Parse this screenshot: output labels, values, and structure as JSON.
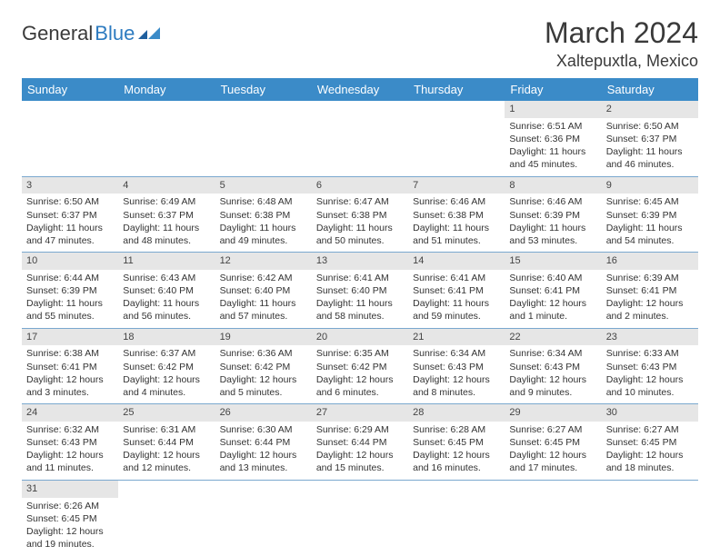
{
  "logo": {
    "text_a": "General",
    "text_b": "Blue"
  },
  "title": "March 2024",
  "location": "Xaltepuxtla, Mexico",
  "colors": {
    "header_bg": "#3b8bc8",
    "header_text": "#ffffff",
    "daynum_bg": "#e6e6e6",
    "row_border": "#7aa8cf",
    "logo_blue": "#2d7bc0",
    "text": "#333333"
  },
  "day_headers": [
    "Sunday",
    "Monday",
    "Tuesday",
    "Wednesday",
    "Thursday",
    "Friday",
    "Saturday"
  ],
  "weeks": [
    [
      {
        "n": "",
        "sr": "",
        "ss": "",
        "dl": ""
      },
      {
        "n": "",
        "sr": "",
        "ss": "",
        "dl": ""
      },
      {
        "n": "",
        "sr": "",
        "ss": "",
        "dl": ""
      },
      {
        "n": "",
        "sr": "",
        "ss": "",
        "dl": ""
      },
      {
        "n": "",
        "sr": "",
        "ss": "",
        "dl": ""
      },
      {
        "n": "1",
        "sr": "Sunrise: 6:51 AM",
        "ss": "Sunset: 6:36 PM",
        "dl": "Daylight: 11 hours and 45 minutes."
      },
      {
        "n": "2",
        "sr": "Sunrise: 6:50 AM",
        "ss": "Sunset: 6:37 PM",
        "dl": "Daylight: 11 hours and 46 minutes."
      }
    ],
    [
      {
        "n": "3",
        "sr": "Sunrise: 6:50 AM",
        "ss": "Sunset: 6:37 PM",
        "dl": "Daylight: 11 hours and 47 minutes."
      },
      {
        "n": "4",
        "sr": "Sunrise: 6:49 AM",
        "ss": "Sunset: 6:37 PM",
        "dl": "Daylight: 11 hours and 48 minutes."
      },
      {
        "n": "5",
        "sr": "Sunrise: 6:48 AM",
        "ss": "Sunset: 6:38 PM",
        "dl": "Daylight: 11 hours and 49 minutes."
      },
      {
        "n": "6",
        "sr": "Sunrise: 6:47 AM",
        "ss": "Sunset: 6:38 PM",
        "dl": "Daylight: 11 hours and 50 minutes."
      },
      {
        "n": "7",
        "sr": "Sunrise: 6:46 AM",
        "ss": "Sunset: 6:38 PM",
        "dl": "Daylight: 11 hours and 51 minutes."
      },
      {
        "n": "8",
        "sr": "Sunrise: 6:46 AM",
        "ss": "Sunset: 6:39 PM",
        "dl": "Daylight: 11 hours and 53 minutes."
      },
      {
        "n": "9",
        "sr": "Sunrise: 6:45 AM",
        "ss": "Sunset: 6:39 PM",
        "dl": "Daylight: 11 hours and 54 minutes."
      }
    ],
    [
      {
        "n": "10",
        "sr": "Sunrise: 6:44 AM",
        "ss": "Sunset: 6:39 PM",
        "dl": "Daylight: 11 hours and 55 minutes."
      },
      {
        "n": "11",
        "sr": "Sunrise: 6:43 AM",
        "ss": "Sunset: 6:40 PM",
        "dl": "Daylight: 11 hours and 56 minutes."
      },
      {
        "n": "12",
        "sr": "Sunrise: 6:42 AM",
        "ss": "Sunset: 6:40 PM",
        "dl": "Daylight: 11 hours and 57 minutes."
      },
      {
        "n": "13",
        "sr": "Sunrise: 6:41 AM",
        "ss": "Sunset: 6:40 PM",
        "dl": "Daylight: 11 hours and 58 minutes."
      },
      {
        "n": "14",
        "sr": "Sunrise: 6:41 AM",
        "ss": "Sunset: 6:41 PM",
        "dl": "Daylight: 11 hours and 59 minutes."
      },
      {
        "n": "15",
        "sr": "Sunrise: 6:40 AM",
        "ss": "Sunset: 6:41 PM",
        "dl": "Daylight: 12 hours and 1 minute."
      },
      {
        "n": "16",
        "sr": "Sunrise: 6:39 AM",
        "ss": "Sunset: 6:41 PM",
        "dl": "Daylight: 12 hours and 2 minutes."
      }
    ],
    [
      {
        "n": "17",
        "sr": "Sunrise: 6:38 AM",
        "ss": "Sunset: 6:41 PM",
        "dl": "Daylight: 12 hours and 3 minutes."
      },
      {
        "n": "18",
        "sr": "Sunrise: 6:37 AM",
        "ss": "Sunset: 6:42 PM",
        "dl": "Daylight: 12 hours and 4 minutes."
      },
      {
        "n": "19",
        "sr": "Sunrise: 6:36 AM",
        "ss": "Sunset: 6:42 PM",
        "dl": "Daylight: 12 hours and 5 minutes."
      },
      {
        "n": "20",
        "sr": "Sunrise: 6:35 AM",
        "ss": "Sunset: 6:42 PM",
        "dl": "Daylight: 12 hours and 6 minutes."
      },
      {
        "n": "21",
        "sr": "Sunrise: 6:34 AM",
        "ss": "Sunset: 6:43 PM",
        "dl": "Daylight: 12 hours and 8 minutes."
      },
      {
        "n": "22",
        "sr": "Sunrise: 6:34 AM",
        "ss": "Sunset: 6:43 PM",
        "dl": "Daylight: 12 hours and 9 minutes."
      },
      {
        "n": "23",
        "sr": "Sunrise: 6:33 AM",
        "ss": "Sunset: 6:43 PM",
        "dl": "Daylight: 12 hours and 10 minutes."
      }
    ],
    [
      {
        "n": "24",
        "sr": "Sunrise: 6:32 AM",
        "ss": "Sunset: 6:43 PM",
        "dl": "Daylight: 12 hours and 11 minutes."
      },
      {
        "n": "25",
        "sr": "Sunrise: 6:31 AM",
        "ss": "Sunset: 6:44 PM",
        "dl": "Daylight: 12 hours and 12 minutes."
      },
      {
        "n": "26",
        "sr": "Sunrise: 6:30 AM",
        "ss": "Sunset: 6:44 PM",
        "dl": "Daylight: 12 hours and 13 minutes."
      },
      {
        "n": "27",
        "sr": "Sunrise: 6:29 AM",
        "ss": "Sunset: 6:44 PM",
        "dl": "Daylight: 12 hours and 15 minutes."
      },
      {
        "n": "28",
        "sr": "Sunrise: 6:28 AM",
        "ss": "Sunset: 6:45 PM",
        "dl": "Daylight: 12 hours and 16 minutes."
      },
      {
        "n": "29",
        "sr": "Sunrise: 6:27 AM",
        "ss": "Sunset: 6:45 PM",
        "dl": "Daylight: 12 hours and 17 minutes."
      },
      {
        "n": "30",
        "sr": "Sunrise: 6:27 AM",
        "ss": "Sunset: 6:45 PM",
        "dl": "Daylight: 12 hours and 18 minutes."
      }
    ],
    [
      {
        "n": "31",
        "sr": "Sunrise: 6:26 AM",
        "ss": "Sunset: 6:45 PM",
        "dl": "Daylight: 12 hours and 19 minutes."
      },
      {
        "n": "",
        "sr": "",
        "ss": "",
        "dl": ""
      },
      {
        "n": "",
        "sr": "",
        "ss": "",
        "dl": ""
      },
      {
        "n": "",
        "sr": "",
        "ss": "",
        "dl": ""
      },
      {
        "n": "",
        "sr": "",
        "ss": "",
        "dl": ""
      },
      {
        "n": "",
        "sr": "",
        "ss": "",
        "dl": ""
      },
      {
        "n": "",
        "sr": "",
        "ss": "",
        "dl": ""
      }
    ]
  ]
}
